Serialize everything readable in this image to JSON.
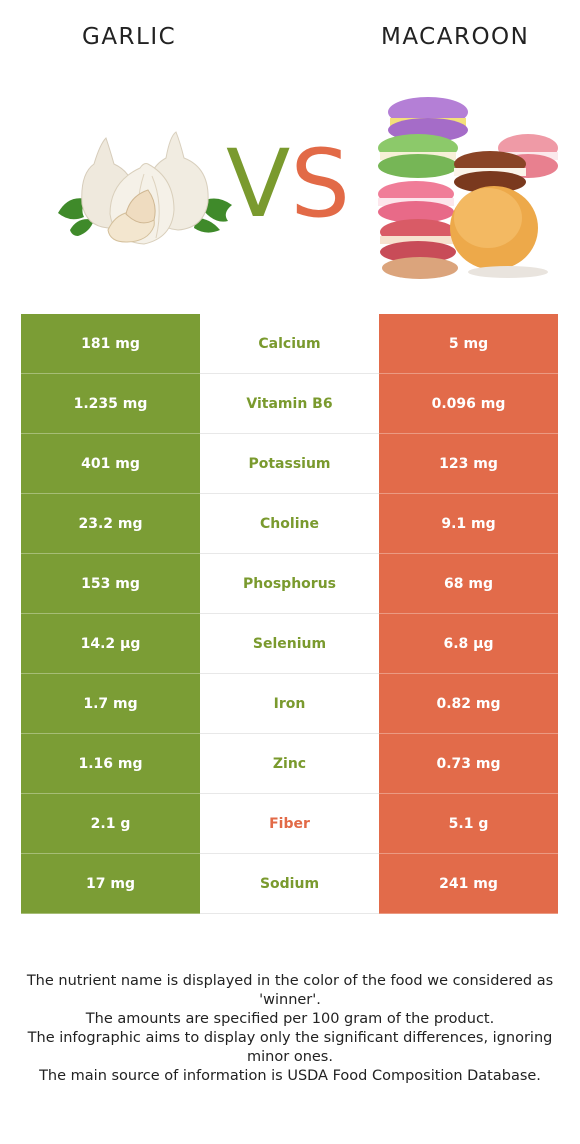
{
  "header": {
    "left_food": "GARLIC",
    "right_food": "MACAROON",
    "vs_v": "V",
    "vs_s": "S"
  },
  "colors": {
    "left": "#7b9d35",
    "right": "#e26b4a"
  },
  "rows": [
    {
      "left": "181 mg",
      "nutrient": "Calcium",
      "right": "5 mg",
      "winner": "left"
    },
    {
      "left": "1.235 mg",
      "nutrient": "Vitamin B6",
      "right": "0.096 mg",
      "winner": "left"
    },
    {
      "left": "401 mg",
      "nutrient": "Potassium",
      "right": "123 mg",
      "winner": "left"
    },
    {
      "left": "23.2 mg",
      "nutrient": "Choline",
      "right": "9.1 mg",
      "winner": "left"
    },
    {
      "left": "153 mg",
      "nutrient": "Phosphorus",
      "right": "68 mg",
      "winner": "left"
    },
    {
      "left": "14.2 µg",
      "nutrient": "Selenium",
      "right": "6.8 µg",
      "winner": "left"
    },
    {
      "left": "1.7 mg",
      "nutrient": "Iron",
      "right": "0.82 mg",
      "winner": "left"
    },
    {
      "left": "1.16 mg",
      "nutrient": "Zinc",
      "right": "0.73 mg",
      "winner": "left"
    },
    {
      "left": "2.1 g",
      "nutrient": "Fiber",
      "right": "5.1 g",
      "winner": "right"
    },
    {
      "left": "17 mg",
      "nutrient": "Sodium",
      "right": "241 mg",
      "winner": "left"
    }
  ],
  "footnote": {
    "line1": "The nutrient name is displayed in the color of the food we considered as 'winner'.",
    "line2": "The amounts are specified per 100 gram of the product.",
    "line3": "The infographic aims to display only the significant differences, ignoring minor ones.",
    "line4": "The main source of information is USDA Food Composition Database."
  }
}
